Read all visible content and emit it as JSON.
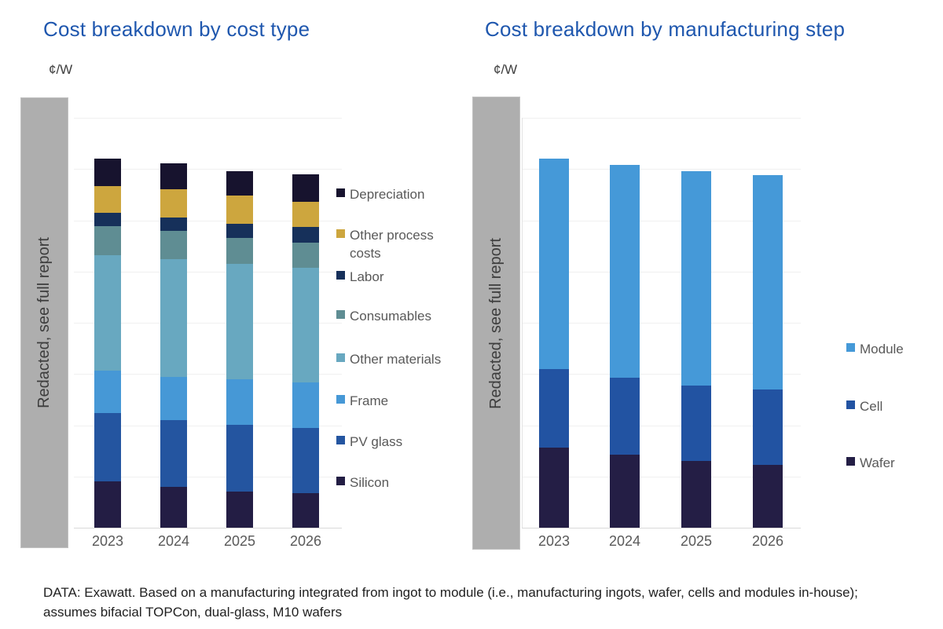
{
  "page": {
    "redacted_label": "Redacted, see full report",
    "footer": "DATA: Exawatt. Based on a manufacturing integrated from ingot to module (i.e., manufacturing ingots, wafer, cells and modules in-house); assumes bifacial TOPCon, dual-glass, M10 wafers",
    "title_color": "#1f57ae"
  },
  "chart_data": [
    {
      "type": "bar",
      "stacked": true,
      "title": "Cost breakdown by cost type",
      "unit_label": "¢/W",
      "xlabel": "",
      "ylabel": "¢/W",
      "y_axis_note": "Y-axis tick values hidden behind 'Redacted, see full report' overlay; series values measured in y-gridline units",
      "ylim": [
        0,
        8
      ],
      "grid": true,
      "legend_position": "right",
      "categories": [
        "2023",
        "2024",
        "2025",
        "2026"
      ],
      "series": [
        {
          "name": "Silicon",
          "color": "#231d44",
          "values": [
            0.91,
            0.8,
            0.71,
            0.67
          ]
        },
        {
          "name": "PV glass",
          "color": "#2455a0",
          "values": [
            1.32,
            1.3,
            1.3,
            1.28
          ]
        },
        {
          "name": "Frame",
          "color": "#4698d6",
          "values": [
            0.83,
            0.84,
            0.89,
            0.89
          ]
        },
        {
          "name": "Other materials",
          "color": "#68a8c0",
          "values": [
            2.26,
            2.3,
            2.25,
            2.24
          ]
        },
        {
          "name": "Consumables",
          "color": "#5f8d93",
          "values": [
            0.56,
            0.55,
            0.51,
            0.48
          ]
        },
        {
          "name": "Labor",
          "color": "#16305a",
          "values": [
            0.27,
            0.26,
            0.27,
            0.31
          ]
        },
        {
          "name": "Other process costs",
          "color": "#cda63e",
          "values": [
            0.51,
            0.56,
            0.55,
            0.49
          ]
        },
        {
          "name": "Depreciation",
          "color": "#17132e",
          "values": [
            0.55,
            0.5,
            0.48,
            0.53
          ]
        }
      ]
    },
    {
      "type": "bar",
      "stacked": true,
      "title": "Cost breakdown by manufacturing step",
      "unit_label": "¢/W",
      "xlabel": "",
      "ylabel": "¢/W",
      "y_axis_note": "Y-axis tick values hidden behind 'Redacted, see full report' overlay; series values measured in y-gridline units",
      "ylim": [
        0,
        8
      ],
      "grid": true,
      "legend_position": "right",
      "categories": [
        "2023",
        "2024",
        "2025",
        "2026"
      ],
      "series": [
        {
          "name": "Wafer",
          "color": "#241e45",
          "values": [
            1.56,
            1.42,
            1.3,
            1.23
          ]
        },
        {
          "name": "Cell",
          "color": "#2253a2",
          "values": [
            1.53,
            1.5,
            1.47,
            1.47
          ]
        },
        {
          "name": "Module",
          "color": "#4599d8",
          "values": [
            4.12,
            4.16,
            4.19,
            4.18
          ]
        }
      ]
    }
  ]
}
